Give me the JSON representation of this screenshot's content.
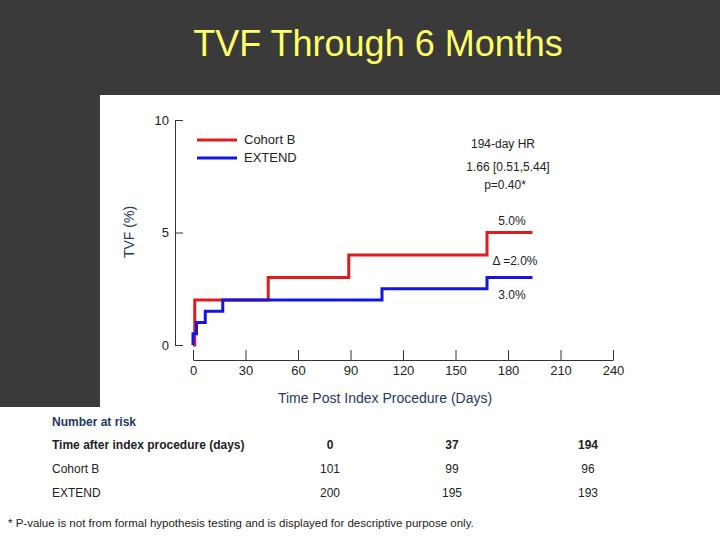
{
  "chart_data": {
    "type": "line",
    "title": "TVF Through 6 Months",
    "x_label": "Time Post Index Procedure (Days)",
    "y_label": "TVF (%)",
    "xlim": [
      0,
      240
    ],
    "xticks": [
      0,
      30,
      60,
      90,
      120,
      150,
      180,
      210,
      240
    ],
    "ylim": [
      0,
      10
    ],
    "yticks": [
      0,
      5,
      10
    ],
    "grid": false,
    "legend": "upper left",
    "line_style": "step",
    "series": [
      {
        "name": "Cohort B",
        "color": "#e01b1b",
        "x": [
          0,
          1,
          43,
          89,
          168,
          194
        ],
        "values": [
          0,
          2,
          3,
          4,
          5,
          5
        ]
      },
      {
        "name": "EXTEND",
        "color": "#1414e6",
        "x": [
          0,
          0,
          2,
          7,
          17,
          108,
          168,
          194
        ],
        "values": [
          0,
          0.5,
          1,
          1.5,
          2,
          2.5,
          3,
          3
        ]
      }
    ],
    "annotations": [
      "194-day HR",
      "1.66 [0.51,5.44]",
      "p=0.40*",
      "5.0%",
      "Δ =2.0%",
      "3.0%"
    ]
  },
  "risk_table": {
    "title": "Number at risk",
    "header": [
      "Time after index procedure (days)",
      0,
      37,
      194
    ],
    "rows": [
      [
        "Cohort B",
        101,
        99,
        96
      ],
      [
        "EXTEND",
        200,
        195,
        193
      ]
    ]
  },
  "footnote": "* P-value is not from formal hypothesis testing and is displayed for descriptive purpose only."
}
